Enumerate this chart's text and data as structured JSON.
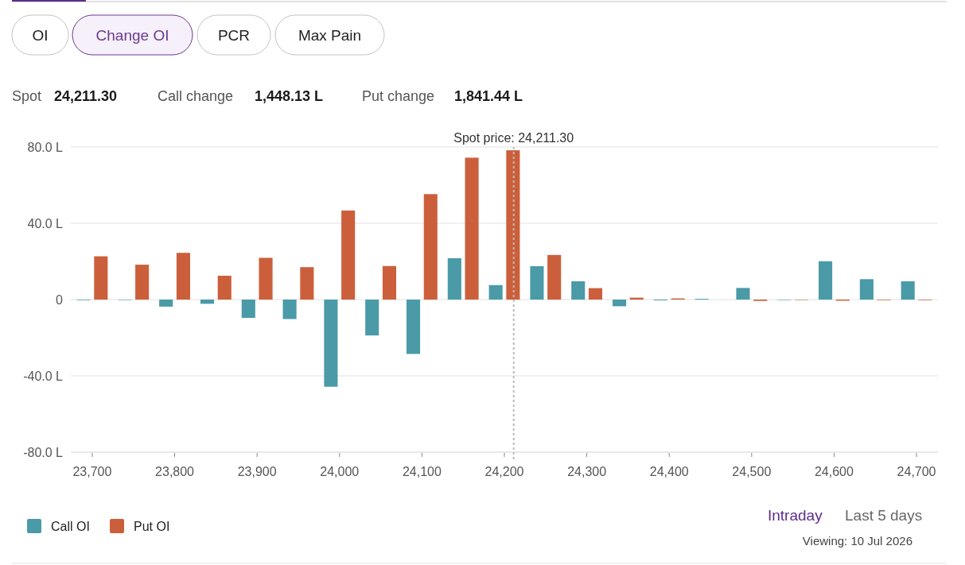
{
  "chart_data": {
    "type": "bar",
    "x": [
      23700,
      23750,
      23800,
      23850,
      23900,
      23950,
      24000,
      24050,
      24100,
      24150,
      24200,
      24250,
      24300,
      24350,
      24400,
      24450,
      24500,
      24550,
      24600,
      24650,
      24700
    ],
    "series": [
      {
        "name": "Call OI",
        "color": "#4a9aa8",
        "values": [
          -0.3,
          -0.2,
          -3.7,
          -2.2,
          -9.6,
          -10.2,
          -45.7,
          -18.8,
          -28.5,
          21.7,
          7.6,
          17.5,
          9.6,
          -3.5,
          -0.4,
          0.4,
          6.1,
          0,
          20.1,
          10.7,
          9.6
        ]
      },
      {
        "name": "Put OI",
        "color": "#cc5f3b",
        "values": [
          22.7,
          18.3,
          24.5,
          12.5,
          21.9,
          17.0,
          46.7,
          17.6,
          55.3,
          74.4,
          78.3,
          23.4,
          6.0,
          1.0,
          0.6,
          null,
          -0.7,
          0,
          -0.6,
          -0.3,
          -0.3
        ]
      }
    ],
    "xlim": [
      23674,
      24726
    ],
    "xticks": [
      {
        "value": 23700,
        "label": "23,700"
      },
      {
        "value": 23800,
        "label": "23,800"
      },
      {
        "value": 23900,
        "label": "23,900"
      },
      {
        "value": 24000,
        "label": "24,000"
      },
      {
        "value": 24100,
        "label": "24,100"
      },
      {
        "value": 24200,
        "label": "24,200"
      },
      {
        "value": 24300,
        "label": "24,300"
      },
      {
        "value": 24400,
        "label": "24,400"
      },
      {
        "value": 24500,
        "label": "24,500"
      },
      {
        "value": 24600,
        "label": "24,600"
      },
      {
        "value": 24700,
        "label": "24,700"
      }
    ],
    "ylim": [
      -80,
      80
    ],
    "yticks": [
      {
        "value": -80,
        "label": "-80.0 L"
      },
      {
        "value": -40,
        "label": "-40.0 L"
      },
      0,
      {
        "value": 40,
        "label": "40.0 L"
      },
      {
        "value": 80,
        "label": "80.0 L"
      }
    ],
    "grid": "y",
    "legend": "bottom left",
    "ref_lines": [
      {
        "axis": "x",
        "value": 24211.3,
        "label": "Spot price: 24,211.30",
        "color": "#bbbbbb",
        "line_style": "dotted"
      }
    ],
    "annotations": [
      "OI",
      "Change OI",
      "PCR",
      "Max Pain",
      "Spot",
      "24,211.30",
      "Call change",
      "1,448.13 L",
      "Put change",
      "1,841.44 L",
      "Intraday",
      "Last 5 days",
      "Viewing: 10 Jul 2026"
    ]
  }
}
